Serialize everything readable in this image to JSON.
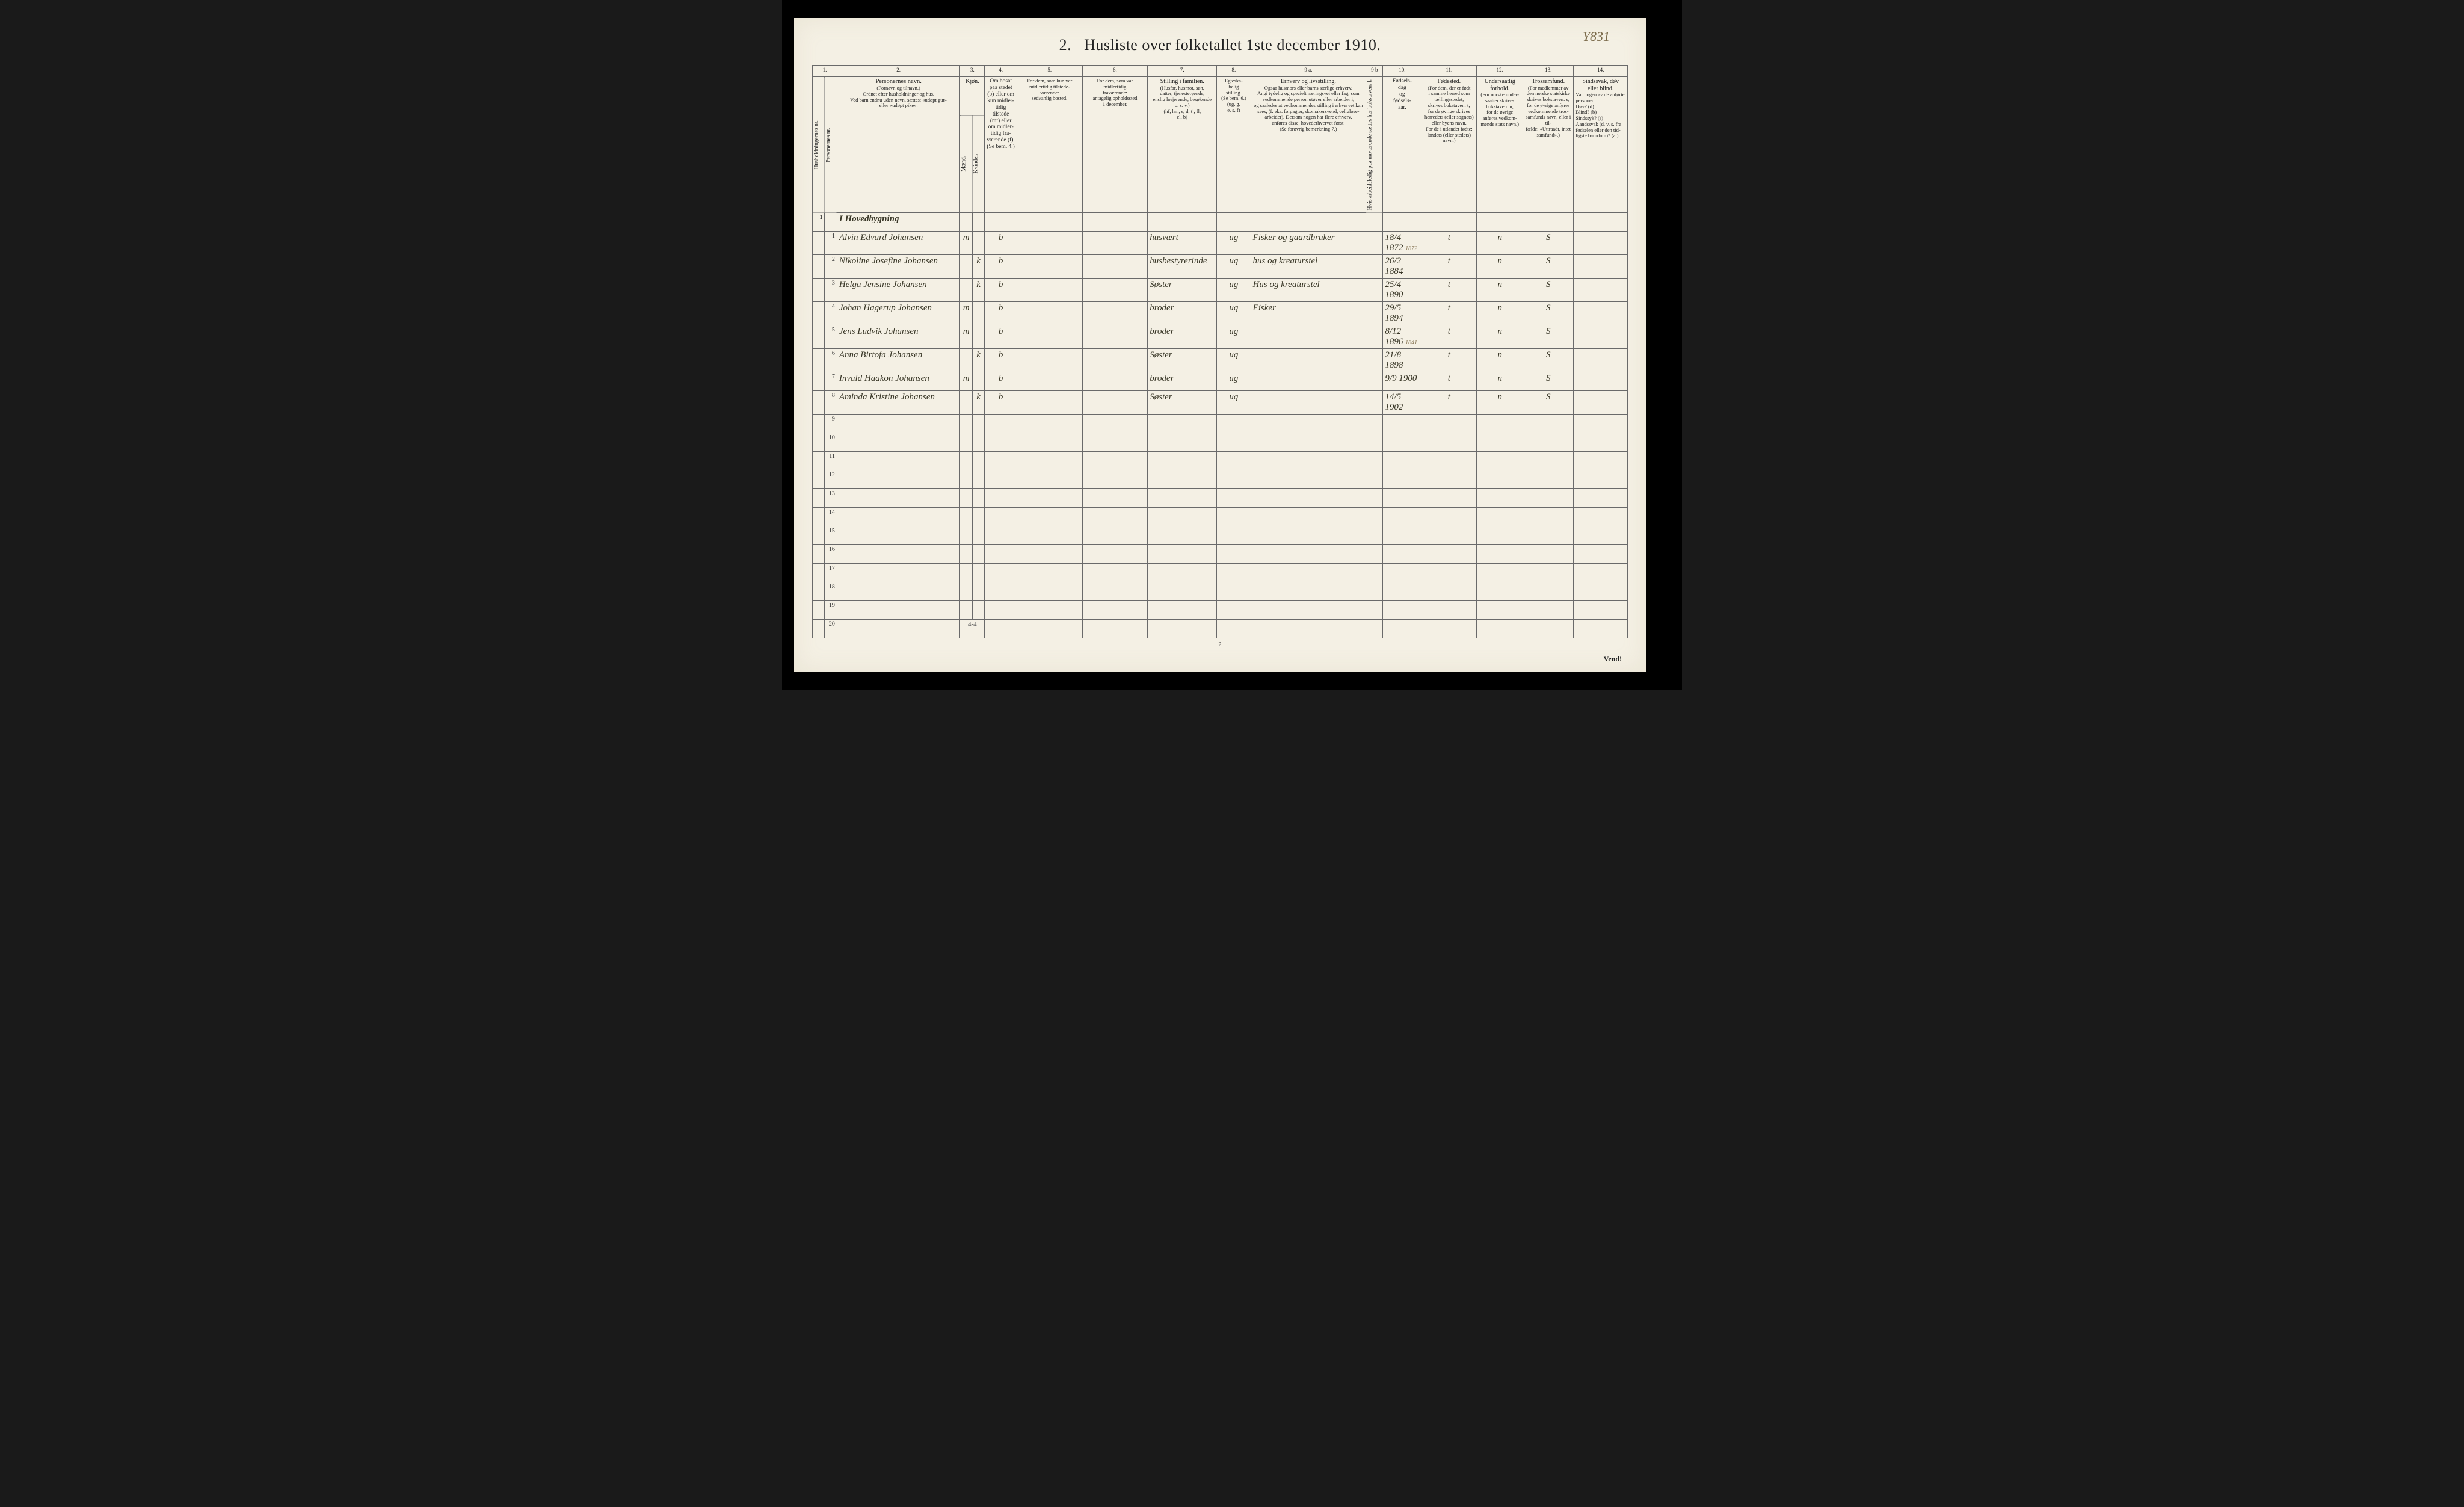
{
  "annotation_top_right": "Y831",
  "title_prefix": "2.",
  "title_main": "Husliste over folketallet 1ste december 1910.",
  "footer_page_number": "2",
  "footer_vend": "Vend!",
  "foot_tally": "4-4",
  "colnums": [
    "1.",
    "2.",
    "3.",
    "4.",
    "5.",
    "6.",
    "7.",
    "8.",
    "9 a.",
    "9 b",
    "10.",
    "11.",
    "12.",
    "13.",
    "14."
  ],
  "headers": {
    "col1": "Husholdningernes nr.",
    "col1b": "Personernes nr.",
    "col2_title": "Personernes navn.",
    "col2_sub": "(Fornavn og tilnavn.)\nOrdnet efter husholdninger og hus.\nVed barn endnu uden navn, sættes: «udøpt gut»\neller «udøpt pike».",
    "col3_title": "Kjøn.",
    "col3_m": "Mænd.",
    "col3_k": "Kvinder.",
    "col3_mk": "m.  k.",
    "col4_title": "Om bosat\npaa stedet\n(b) eller om\nkun midler-\ntidig tilstede\n(mt) eller\nom midler-\ntidig fra-\nværende (f).\n(Se bem. 4.)",
    "col5_title": "For dem, som kun var\nmidlertidig tilstede-\nværende:",
    "col5_sub": "sedvanlig bosted.",
    "col6_title": "For dem, som var\nmidlertidig\nfraværende:",
    "col6_sub": "antagelig opholdssted\n1 december.",
    "col7_title": "Stilling i familien.",
    "col7_sub": "(Husfar, husmor, søn,\ndatter, tjenestetyende,\nenslig losjerende, besøkende\no. s. v.)\n(hf, hm, s, d, tj, fl,\nel, b)",
    "col8_title": "Egteska-\nbelig\nstilling.",
    "col8_sub": "(Se bem. 6.)\n(ug, g,\ne, s, f)",
    "col9a_title": "Erhverv og livsstilling.",
    "col9a_sub": "Ogsaa husmors eller barns særlige erhverv.\nAngi tydelig og specielt næringsvei eller fag, som\nvedkommende person utøver eller arbeider i,\nog saaledes at vedkommendes stilling i erhvervet kan\nsees, (f. eks. forpagter, skomakersvend, cellulose-\narbeider). Dersom nogen har flere erhverv,\nanføres disse, hovederhvervet først.\n(Se forøvrig bemerkning 7.)",
    "col9b": "Hvis arbeidsledig\npaa nuværende sættes\nher bokstaven: l.",
    "col10_title": "Fødsels-\ndag\nog\nfødsels-\naar.",
    "col11_title": "Fødested.",
    "col11_sub": "(For dem, der er født\ni samme herred som\ntællingsstedet,\nskrives bokstaven: t;\nfor de øvrige skrives\nherredets (eller sognets)\neller byens navn.\nFor de i utlandet fødte:\nlandets (eller stedets)\nnavn.)",
    "col12_title": "Undersaatlig\nforhold.",
    "col12_sub": "(For norske under-\nsaatter skrives\nbokstaven: n;\nfor de øvrige\nanføres vedkom-\nmende stats navn.)",
    "col13_title": "Trossamfund.",
    "col13_sub": "(For medlemmer av\nden norske statskirke\nskrives bokstaven: s;\nfor de øvrige anføres\nvedkommende tros-\nsamfunds navn, eller i til-\nfælde: «Uttraadt, intet\nsamfund».)",
    "col14_title": "Sindssvak, døv\neller blind.",
    "col14_sub": "Var nogen av de anførte\npersoner:\nDøv?        (d)\nBlind?      (b)\nSindssyk?  (s)\nAandssvak (d. v. s. fra\nfødselen eller den tid-\nligste barndom)?  (a.)"
  },
  "household_label": "I Hovedbygning",
  "rows": [
    {
      "num": "1",
      "name": "Alvin Edvard Johansen",
      "mk": "m",
      "res": "b",
      "fam": "husvært",
      "marital": "ug",
      "occ": "Fisker og gaardbruker",
      "dob": "18/4 1872",
      "annot": "1872",
      "birthplace": "t",
      "nat": "n",
      "rel": "S"
    },
    {
      "num": "2",
      "name": "Nikoline Josefine Johansen",
      "mk": "k",
      "res": "b",
      "fam": "husbestyrerinde",
      "marital": "ug",
      "occ": "hus og kreaturstel",
      "dob": "26/2 1884",
      "annot": "",
      "birthplace": "t",
      "nat": "n",
      "rel": "S"
    },
    {
      "num": "3",
      "name": "Helga Jensine Johansen",
      "mk": "k",
      "res": "b",
      "fam": "Søster",
      "marital": "ug",
      "occ": "Hus og kreaturstel",
      "dob": "25/4 1890",
      "annot": "",
      "birthplace": "t",
      "nat": "n",
      "rel": "S"
    },
    {
      "num": "4",
      "name": "Johan Hagerup Johansen",
      "mk": "m",
      "res": "b",
      "fam": "broder",
      "marital": "ug",
      "occ": "Fisker",
      "dob": "29/5 1894",
      "annot": "",
      "birthplace": "t",
      "nat": "n",
      "rel": "S"
    },
    {
      "num": "5",
      "name": "Jens Ludvik Johansen",
      "mk": "m",
      "res": "b",
      "fam": "broder",
      "marital": "ug",
      "occ": "",
      "dob": "8/12 1896",
      "annot": "1841",
      "birthplace": "t",
      "nat": "n",
      "rel": "S"
    },
    {
      "num": "6",
      "name": "Anna Birtofa Johansen",
      "mk": "k",
      "res": "b",
      "fam": "Søster",
      "marital": "ug",
      "occ": "",
      "dob": "21/8 1898",
      "annot": "",
      "birthplace": "t",
      "nat": "n",
      "rel": "S"
    },
    {
      "num": "7",
      "name": "Invald Haakon Johansen",
      "mk": "m",
      "res": "b",
      "fam": "broder",
      "marital": "ug",
      "occ": "",
      "dob": "9/9 1900",
      "annot": "",
      "birthplace": "t",
      "nat": "n",
      "rel": "S"
    },
    {
      "num": "8",
      "name": "Aminda Kristine Johansen",
      "mk": "k",
      "res": "b",
      "fam": "Søster",
      "marital": "ug",
      "occ": "",
      "dob": "14/5 1902",
      "annot": "",
      "birthplace": "t",
      "nat": "n",
      "rel": "S"
    }
  ],
  "blank_rows": [
    "9",
    "10",
    "11",
    "12",
    "13",
    "14",
    "15",
    "16",
    "17",
    "18",
    "19",
    "20"
  ],
  "layout": {
    "col_widths_pct": [
      1.6,
      1.6,
      16,
      1.6,
      1.6,
      4.2,
      8.5,
      8.5,
      9,
      4.4,
      15,
      2.2,
      5,
      7.2,
      6,
      6.6,
      7
    ],
    "colors": {
      "page_bg": "#f4f0e4",
      "border": "#6a6a6a",
      "ink": "#222",
      "handwriting": "#3a3828",
      "annotation": "#7a6a4a"
    },
    "fonts": {
      "title_size_pt": 20,
      "header_size_pt": 8,
      "body_handwriting_size_pt": 13
    }
  }
}
